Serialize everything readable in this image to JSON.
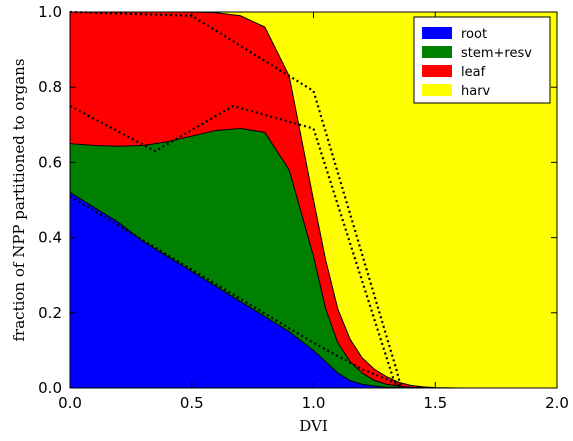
{
  "chart_data": {
    "type": "area",
    "stacked": true,
    "xlabel": "DVI",
    "ylabel": "fraction of NPP partitioned to organs",
    "xlim": [
      0.0,
      2.0
    ],
    "ylim": [
      0.0,
      1.0
    ],
    "xticks": [
      "0.0",
      "0.5",
      "1.0",
      "1.5",
      "2.0"
    ],
    "yticks": [
      "0.0",
      "0.2",
      "0.4",
      "0.6",
      "0.8",
      "1.0"
    ],
    "grid": false,
    "legend_position": "top-right",
    "x": [
      0.0,
      0.1,
      0.2,
      0.3,
      0.4,
      0.5,
      0.6,
      0.7,
      0.8,
      0.9,
      1.0,
      1.05,
      1.1,
      1.15,
      1.2,
      1.25,
      1.3,
      1.35,
      1.4,
      1.45,
      1.5,
      1.6,
      1.7,
      1.8,
      1.9,
      2.0
    ],
    "series": [
      {
        "name": "root",
        "color": "#0000ff",
        "cumulative_top": [
          0.52,
          0.48,
          0.44,
          0.39,
          0.35,
          0.31,
          0.27,
          0.23,
          0.19,
          0.15,
          0.1,
          0.07,
          0.04,
          0.02,
          0.01,
          0.005,
          0.002,
          0.001,
          0.0,
          0.0,
          0.0,
          0.0,
          0.0,
          0.0,
          0.0,
          0.0
        ]
      },
      {
        "name": "stem+resv",
        "color": "#008000",
        "cumulative_top": [
          0.65,
          0.645,
          0.643,
          0.645,
          0.655,
          0.67,
          0.685,
          0.69,
          0.68,
          0.58,
          0.35,
          0.21,
          0.12,
          0.07,
          0.04,
          0.02,
          0.01,
          0.005,
          0.002,
          0.001,
          0.0,
          0.0,
          0.0,
          0.0,
          0.0,
          0.0
        ]
      },
      {
        "name": "leaf",
        "color": "#ff0000",
        "cumulative_top": [
          1.0,
          1.0,
          1.0,
          1.0,
          1.0,
          1.0,
          0.998,
          0.99,
          0.96,
          0.83,
          0.5,
          0.34,
          0.21,
          0.13,
          0.08,
          0.05,
          0.03,
          0.015,
          0.007,
          0.003,
          0.001,
          0.0,
          0.0,
          0.0,
          0.0,
          0.0
        ]
      },
      {
        "name": "harv",
        "color": "#ffff00",
        "cumulative_top": [
          1.0,
          1.0,
          1.0,
          1.0,
          1.0,
          1.0,
          1.0,
          1.0,
          1.0,
          1.0,
          1.0,
          1.0,
          1.0,
          1.0,
          1.0,
          1.0,
          1.0,
          1.0,
          1.0,
          1.0,
          1.0,
          1.0,
          1.0,
          1.0,
          1.0,
          1.0
        ]
      }
    ],
    "reference_lines": [
      {
        "style": "dotted",
        "x": [
          0.0,
          1.0,
          1.2,
          1.33,
          1.36
        ],
        "y": [
          0.51,
          0.12,
          0.05,
          0.015,
          0.0
        ]
      },
      {
        "style": "dotted",
        "x": [
          0.0,
          0.35,
          0.67,
          1.0,
          1.33,
          1.36
        ],
        "y": [
          0.75,
          0.63,
          0.75,
          0.69,
          0.02,
          0.0
        ]
      },
      {
        "style": "dotted",
        "x": [
          0.0,
          0.5,
          1.0,
          1.34,
          1.36
        ],
        "y": [
          1.0,
          0.99,
          0.79,
          0.05,
          0.0
        ]
      }
    ]
  }
}
